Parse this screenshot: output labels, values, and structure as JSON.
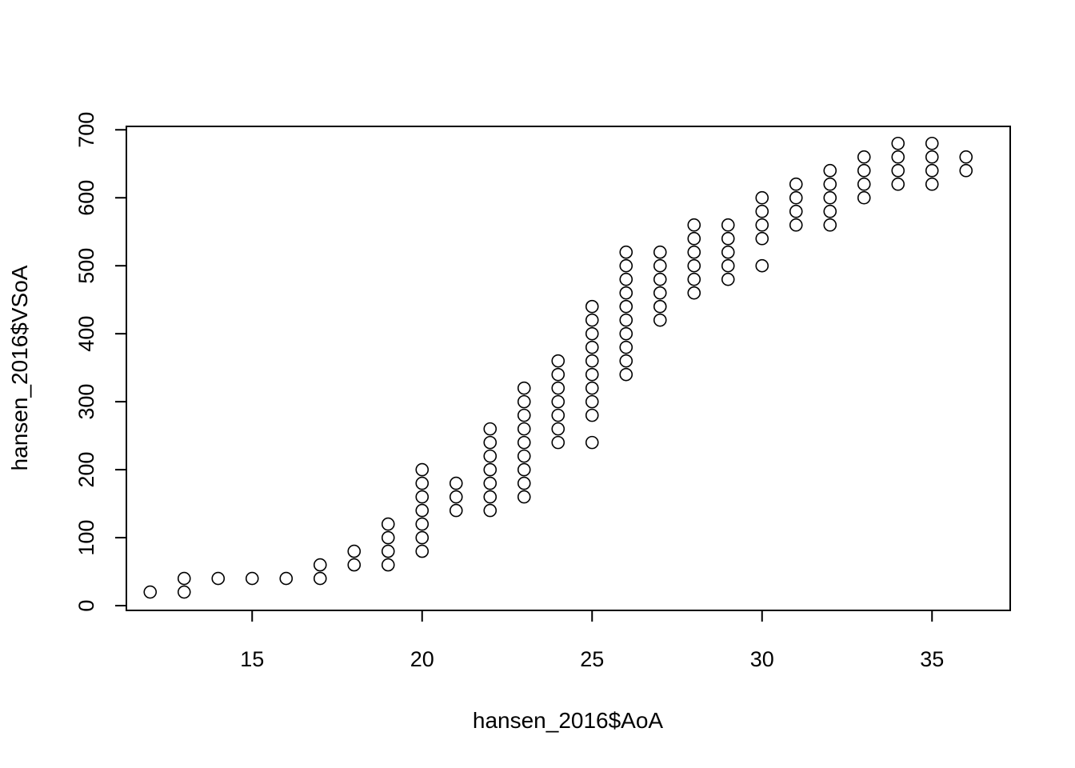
{
  "chart_data": {
    "type": "scatter",
    "xlabel": "hansen_2016$AoA",
    "ylabel": "hansen_2016$VSoA",
    "xlim": [
      11.3,
      37.3
    ],
    "ylim": [
      -7,
      705
    ],
    "x_ticks": [
      15,
      20,
      25,
      30,
      35
    ],
    "y_ticks": [
      0,
      100,
      200,
      300,
      400,
      500,
      600,
      700
    ],
    "grid": false,
    "legend": "none",
    "marker": "open-circle",
    "colors": {
      "points": "#000000",
      "background": "#ffffff"
    },
    "points": [
      [
        12,
        20
      ],
      [
        13,
        20
      ],
      [
        13,
        40
      ],
      [
        14,
        40
      ],
      [
        15,
        40
      ],
      [
        16,
        40
      ],
      [
        17,
        40
      ],
      [
        17,
        60
      ],
      [
        18,
        60
      ],
      [
        18,
        80
      ],
      [
        19,
        60
      ],
      [
        19,
        80
      ],
      [
        19,
        100
      ],
      [
        19,
        120
      ],
      [
        20,
        80
      ],
      [
        20,
        100
      ],
      [
        20,
        120
      ],
      [
        20,
        140
      ],
      [
        20,
        160
      ],
      [
        20,
        180
      ],
      [
        20,
        200
      ],
      [
        21,
        140
      ],
      [
        21,
        160
      ],
      [
        21,
        180
      ],
      [
        22,
        140
      ],
      [
        22,
        160
      ],
      [
        22,
        180
      ],
      [
        22,
        200
      ],
      [
        22,
        220
      ],
      [
        22,
        240
      ],
      [
        22,
        260
      ],
      [
        23,
        160
      ],
      [
        23,
        180
      ],
      [
        23,
        200
      ],
      [
        23,
        220
      ],
      [
        23,
        240
      ],
      [
        23,
        260
      ],
      [
        23,
        280
      ],
      [
        23,
        300
      ],
      [
        23,
        320
      ],
      [
        24,
        240
      ],
      [
        24,
        260
      ],
      [
        24,
        280
      ],
      [
        24,
        300
      ],
      [
        24,
        320
      ],
      [
        24,
        340
      ],
      [
        24,
        360
      ],
      [
        25,
        240
      ],
      [
        25,
        280
      ],
      [
        25,
        300
      ],
      [
        25,
        320
      ],
      [
        25,
        340
      ],
      [
        25,
        360
      ],
      [
        25,
        380
      ],
      [
        25,
        400
      ],
      [
        25,
        420
      ],
      [
        25,
        440
      ],
      [
        26,
        340
      ],
      [
        26,
        360
      ],
      [
        26,
        380
      ],
      [
        26,
        400
      ],
      [
        26,
        420
      ],
      [
        26,
        440
      ],
      [
        26,
        460
      ],
      [
        26,
        480
      ],
      [
        26,
        500
      ],
      [
        26,
        520
      ],
      [
        27,
        420
      ],
      [
        27,
        440
      ],
      [
        27,
        460
      ],
      [
        27,
        480
      ],
      [
        27,
        500
      ],
      [
        27,
        520
      ],
      [
        28,
        460
      ],
      [
        28,
        480
      ],
      [
        28,
        500
      ],
      [
        28,
        520
      ],
      [
        28,
        540
      ],
      [
        28,
        560
      ],
      [
        29,
        480
      ],
      [
        29,
        500
      ],
      [
        29,
        520
      ],
      [
        29,
        540
      ],
      [
        29,
        560
      ],
      [
        30,
        500
      ],
      [
        30,
        540
      ],
      [
        30,
        560
      ],
      [
        30,
        580
      ],
      [
        30,
        600
      ],
      [
        31,
        560
      ],
      [
        31,
        580
      ],
      [
        31,
        600
      ],
      [
        31,
        620
      ],
      [
        32,
        560
      ],
      [
        32,
        580
      ],
      [
        32,
        600
      ],
      [
        32,
        620
      ],
      [
        32,
        640
      ],
      [
        33,
        600
      ],
      [
        33,
        620
      ],
      [
        33,
        640
      ],
      [
        33,
        660
      ],
      [
        34,
        620
      ],
      [
        34,
        640
      ],
      [
        34,
        660
      ],
      [
        34,
        680
      ],
      [
        35,
        620
      ],
      [
        35,
        640
      ],
      [
        35,
        660
      ],
      [
        35,
        680
      ],
      [
        36,
        640
      ],
      [
        36,
        660
      ]
    ]
  }
}
